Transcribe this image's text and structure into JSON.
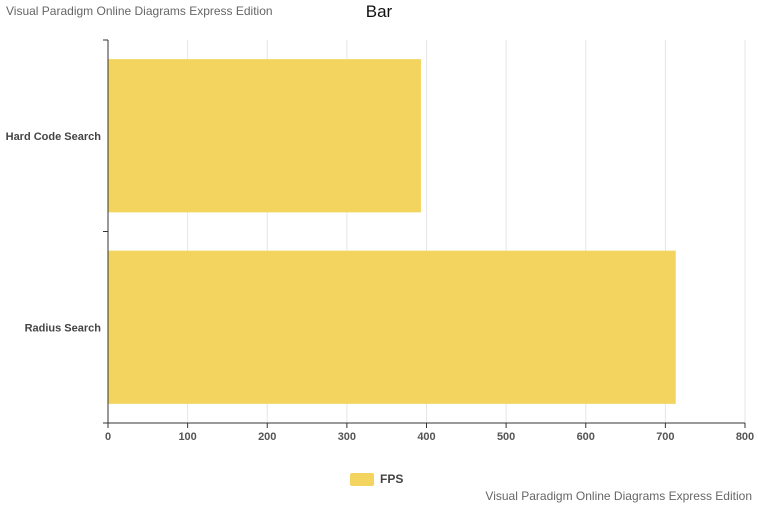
{
  "watermark_text": "Visual Paradigm Online Diagrams Express Edition",
  "chart_data": {
    "type": "bar",
    "orientation": "horizontal",
    "title": "Bar",
    "categories": [
      "Hard Code Search",
      "Radius Search"
    ],
    "series": [
      {
        "name": "FPS",
        "values": [
          393,
          713
        ],
        "color": "#f2d45f"
      }
    ],
    "xlim": [
      0,
      800
    ],
    "xticks": [
      0,
      100,
      200,
      300,
      400,
      500,
      600,
      700,
      800
    ],
    "xlabel": "",
    "ylabel": "",
    "grid": true,
    "legend_position": "bottom"
  }
}
